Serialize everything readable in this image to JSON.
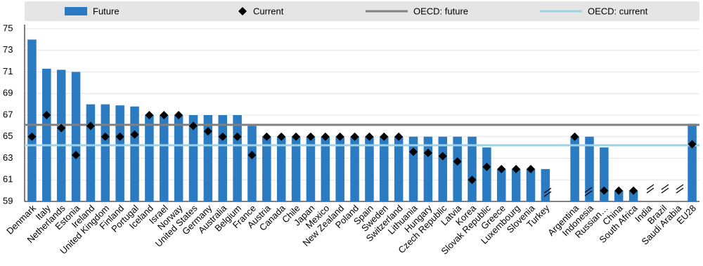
{
  "chart_data": {
    "type": "bar",
    "categories": [
      "Denmark",
      "Italy",
      "Netherlands",
      "Estonia",
      "Ireland",
      "United Kingdom",
      "Finland",
      "Portugal",
      "Iceland",
      "Israel",
      "Norway",
      "United States",
      "Germany",
      "Australia",
      "Belgium",
      "France",
      "Austria",
      "Canada",
      "Chile",
      "Japan",
      "Mexico",
      "New Zealand",
      "Poland",
      "Spain",
      "Sweden",
      "Switzerland",
      "Lithuania",
      "Hungary",
      "Czech Republic",
      "Latvia",
      "Korea",
      "Slovak Republic",
      "Greece",
      "Luxembourg",
      "Slovenia",
      "Turkey",
      null,
      "Argentina",
      "Indonesia",
      "Russian…",
      "China",
      "South Africa",
      "India",
      "Brazil",
      "Saudi Arabia",
      "EU28"
    ],
    "series": [
      {
        "name": "Future",
        "color": "#2b7bc3",
        "values": [
          74,
          71.3,
          71.2,
          71,
          68,
          68,
          67.9,
          67.8,
          67,
          67,
          67,
          67,
          67,
          67,
          67,
          66,
          65,
          65,
          65,
          65,
          65,
          65,
          65,
          65,
          65,
          65,
          65,
          65,
          65,
          65,
          65,
          64,
          62,
          62,
          62,
          62,
          null,
          65,
          65,
          64,
          60,
          60,
          null,
          null,
          null,
          66.2
        ]
      },
      {
        "name": "Current",
        "color": "#000000",
        "values": [
          65,
          67,
          65.8,
          63.3,
          66,
          65,
          65,
          65.2,
          67,
          67,
          67,
          66,
          65.5,
          65,
          65,
          63.3,
          65,
          65,
          65,
          65,
          65,
          65,
          65,
          65,
          65,
          65,
          63.6,
          63.5,
          63.2,
          62.7,
          61,
          62.2,
          62,
          62,
          62,
          null,
          null,
          65,
          null,
          60,
          60,
          60,
          null,
          null,
          null,
          64.3
        ]
      },
      {
        "name": "OECD: future",
        "color": "#808080",
        "value": 66.1
      },
      {
        "name": "OECD: current",
        "color": "#9ed3e6",
        "value": 64.2
      }
    ],
    "ylim": [
      59,
      75
    ],
    "yticks": [
      59,
      61,
      63,
      65,
      67,
      69,
      71,
      73,
      75
    ],
    "grid": true
  }
}
